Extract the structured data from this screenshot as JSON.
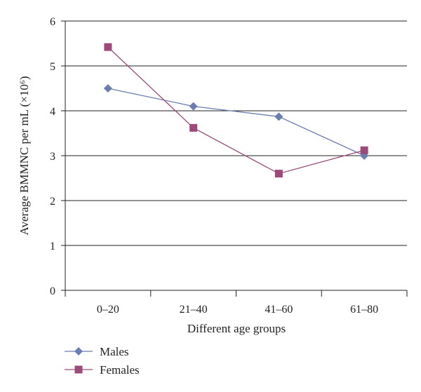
{
  "chart_data": {
    "type": "line",
    "categories": [
      "0–20",
      "21–40",
      "41–60",
      "61–80"
    ],
    "series": [
      {
        "name": "Males",
        "values": [
          4.5,
          4.1,
          3.87,
          3.0
        ],
        "color": "#6b7eb3",
        "marker": "diamond"
      },
      {
        "name": "Females",
        "values": [
          5.42,
          3.62,
          2.6,
          3.12
        ],
        "color": "#9c4a7a",
        "marker": "square"
      }
    ],
    "xlabel": "Different age groups",
    "ylabel": "Average BMMNC per mL (×10⁶)",
    "ylim": [
      0,
      6
    ],
    "yticks": [
      0,
      1,
      2,
      3,
      4,
      5,
      6
    ],
    "grid": true,
    "legend_position": "bottom-left"
  }
}
